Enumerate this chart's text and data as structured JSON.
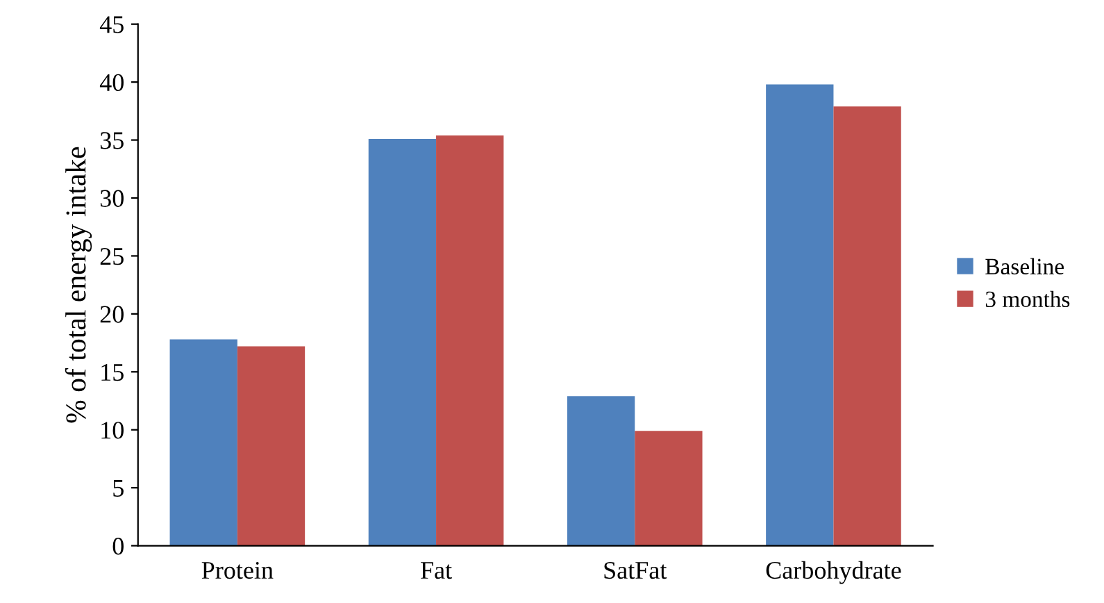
{
  "chart_data": {
    "type": "bar",
    "ylabel": "% of total energy intake",
    "categories": [
      "Protein",
      "Fat",
      "SatFat",
      "Carbohydrate"
    ],
    "series": [
      {
        "name": "Baseline",
        "color": "#4f81bd",
        "values": [
          17.8,
          35.1,
          12.9,
          39.8
        ]
      },
      {
        "name": "3 months",
        "color": "#c0504d",
        "values": [
          17.2,
          35.4,
          9.9,
          37.9
        ]
      }
    ],
    "ylim": [
      0,
      45
    ],
    "yticks": [
      0,
      5,
      10,
      15,
      20,
      25,
      30,
      35,
      40,
      45
    ],
    "grid": false,
    "legend": "right"
  }
}
